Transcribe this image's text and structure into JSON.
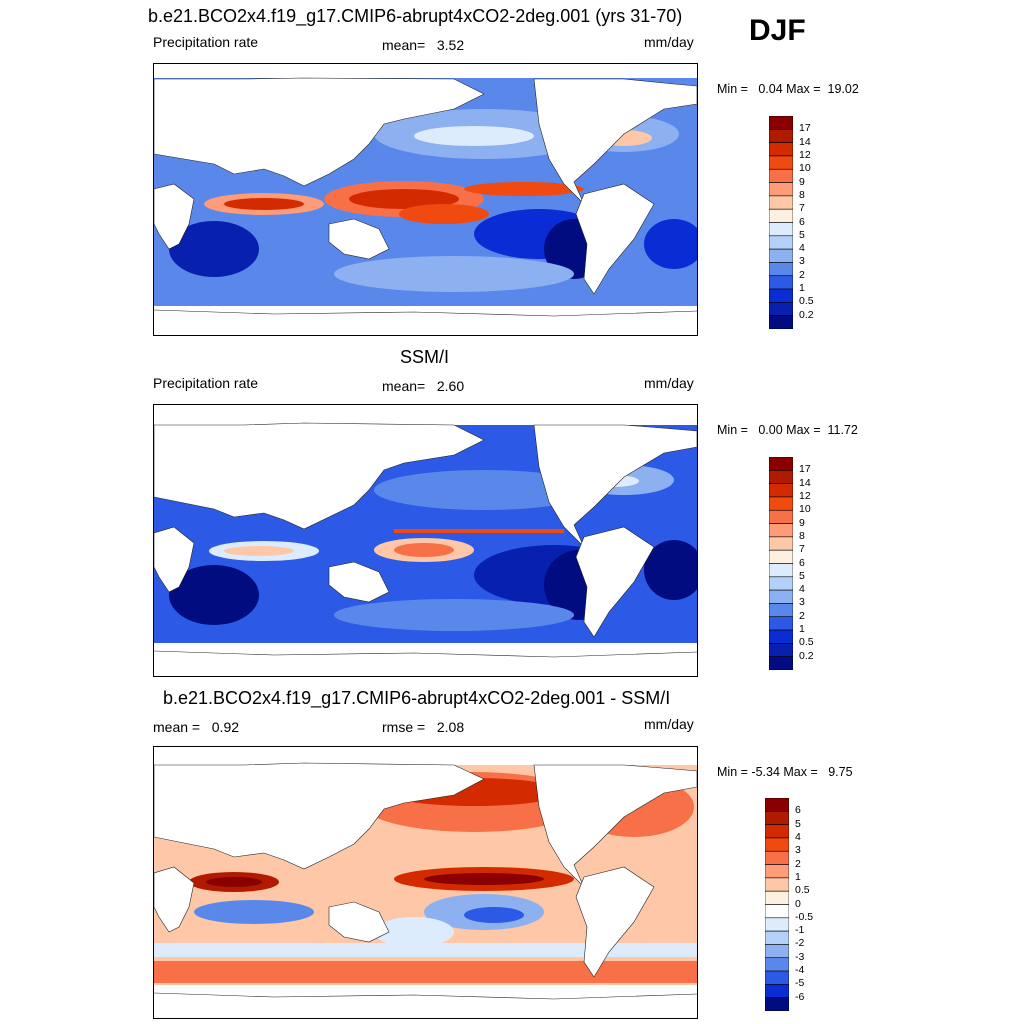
{
  "season": "DJF",
  "panels": [
    {
      "title": "b.e21.BCO2x4.f19_g17.CMIP6-abrupt4xCO2-2deg.001 (yrs 31-70)",
      "left_label": "Precipitation rate",
      "stat_label": "mean=",
      "stat_value": "3.52",
      "units": "mm/day",
      "min_label": "Min =",
      "min_value": "0.04",
      "max_label": "Max =",
      "max_value": "19.02",
      "colorbar": {
        "labels": [
          "17",
          "14",
          "12",
          "10",
          "9",
          "8",
          "7",
          "6",
          "5",
          "4",
          "3",
          "2",
          "1",
          "0.5",
          "0.2"
        ],
        "colors": [
          "#8a0000",
          "#b01a00",
          "#d42a00",
          "#f04a10",
          "#f87048",
          "#fc9c78",
          "#fec8a8",
          "#fef0e0",
          "#dcecfc",
          "#b4d0f8",
          "#8cb0f0",
          "#5a88ea",
          "#2c5ae6",
          "#0a2cd4",
          "#0820b0",
          "#000c80"
        ]
      }
    },
    {
      "title": "SSM/I",
      "left_label": "Precipitation rate",
      "stat_label": "mean=",
      "stat_value": "2.60",
      "units": "mm/day",
      "min_label": "Min =",
      "min_value": "0.00",
      "max_label": "Max =",
      "max_value": "11.72",
      "colorbar": {
        "labels": [
          "17",
          "14",
          "12",
          "10",
          "9",
          "8",
          "7",
          "6",
          "5",
          "4",
          "3",
          "2",
          "1",
          "0.5",
          "0.2"
        ],
        "colors": [
          "#8a0000",
          "#b01a00",
          "#d42a00",
          "#f04a10",
          "#f87048",
          "#fc9c78",
          "#fec8a8",
          "#fef0e0",
          "#dcecfc",
          "#b4d0f8",
          "#8cb0f0",
          "#5a88ea",
          "#2c5ae6",
          "#0a2cd4",
          "#0820b0",
          "#000c80"
        ]
      }
    },
    {
      "title": "b.e21.BCO2x4.f19_g17.CMIP6-abrupt4xCO2-2deg.001 - SSM/I",
      "left_label": "mean =",
      "left_value": "0.92",
      "stat_label": "rmse =",
      "stat_value": "2.08",
      "units": "mm/day",
      "min_label": "Min =",
      "min_value": "-5.34",
      "max_label": "Max =",
      "max_value": "9.75",
      "colorbar": {
        "labels": [
          "6",
          "5",
          "4",
          "3",
          "2",
          "1",
          "0.5",
          "0",
          "-0.5",
          "-1",
          "-2",
          "-3",
          "-4",
          "-5",
          "-6"
        ],
        "colors": [
          "#8a0000",
          "#b01a00",
          "#d42a00",
          "#f04a10",
          "#f87048",
          "#fc9c78",
          "#fec8a8",
          "#fef0e0",
          "#fefefe",
          "#dcecfc",
          "#b4d0f8",
          "#8cb0f0",
          "#5a88ea",
          "#2c5ae6",
          "#0a2cd4",
          "#000c80"
        ]
      }
    }
  ]
}
